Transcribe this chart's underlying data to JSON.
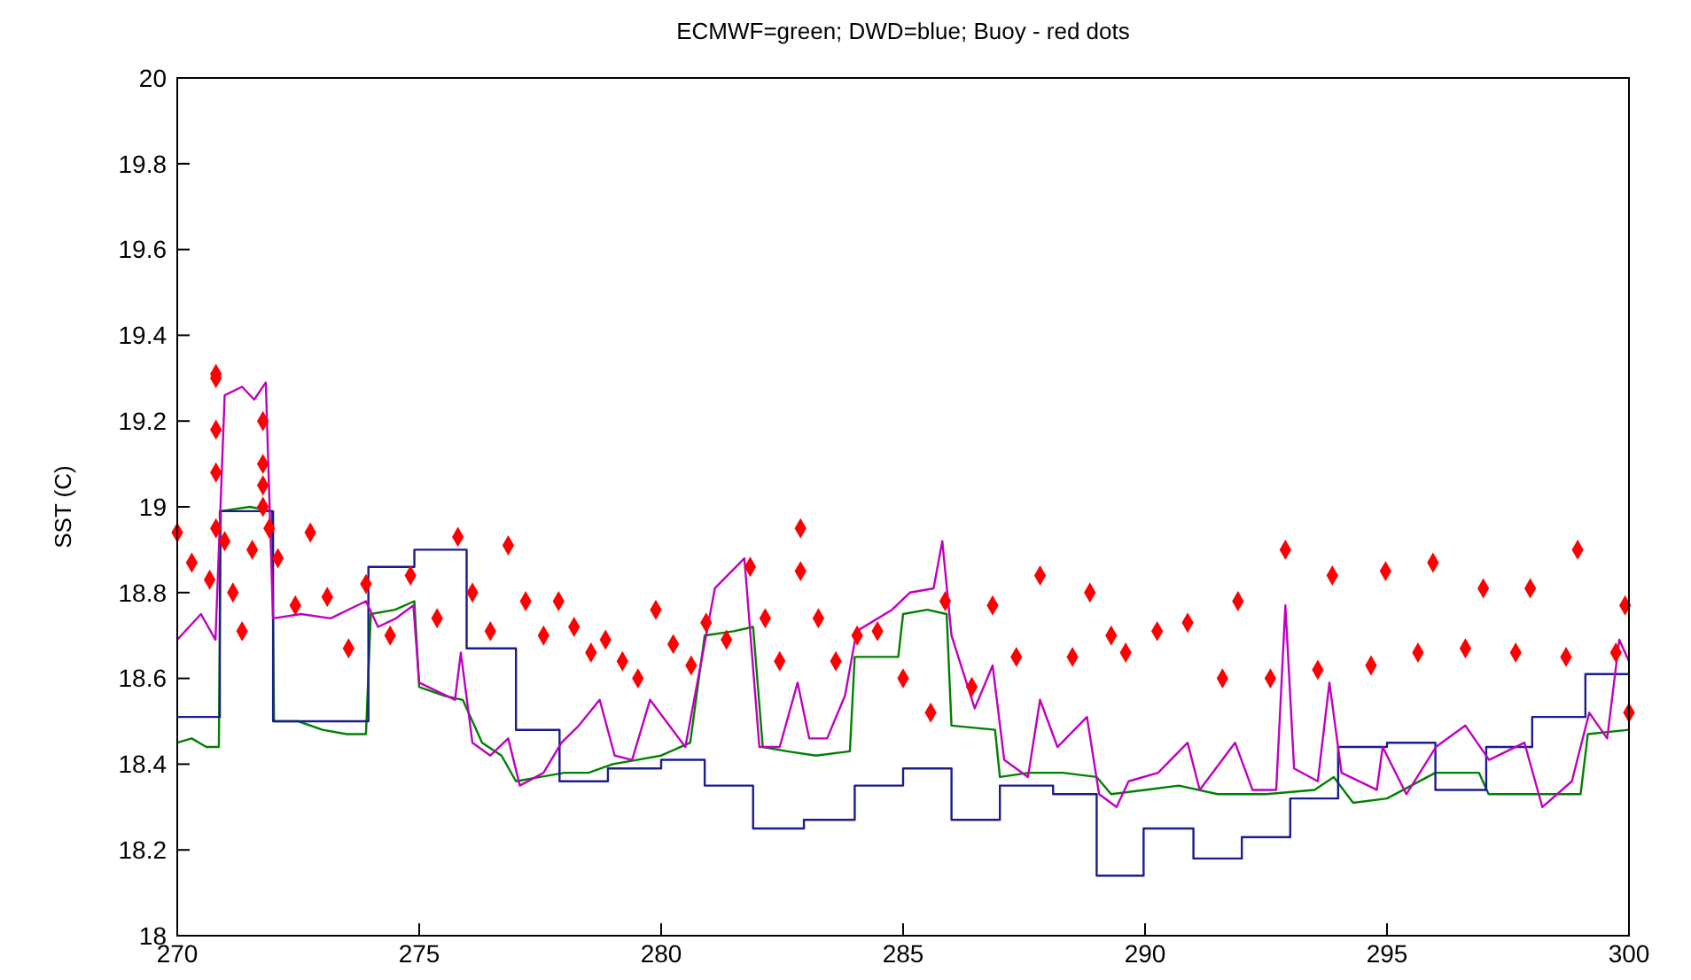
{
  "chart_data": {
    "type": "line",
    "title": "ECMWF=green; DWD=blue; Buoy - red dots",
    "ylabel": "SST (C)",
    "xlim": [
      270,
      300
    ],
    "xticks": [
      270,
      275,
      280,
      285,
      290,
      295,
      300
    ],
    "ylim": [
      18,
      20
    ],
    "yticks": [
      18,
      18.2,
      18.4,
      18.6,
      18.8,
      19,
      19.2,
      19.4,
      19.6,
      19.8,
      20
    ],
    "grid": false,
    "series": [
      {
        "color": "#008000",
        "x": [
          270,
          270.3,
          270.6,
          270.86,
          270.9,
          271.5,
          271.96,
          272,
          272.5,
          273,
          273.5,
          273.9,
          274,
          274.5,
          274.9,
          275,
          275.5,
          275.9,
          276.3,
          276.7,
          277,
          277.5,
          278,
          278.5,
          279,
          279.5,
          280,
          280.6,
          280.9,
          281.5,
          281.9,
          282.1,
          282.6,
          283.2,
          283.9,
          284,
          284.9,
          285,
          285.5,
          285.9,
          286,
          286.9,
          287,
          287.6,
          288.3,
          289,
          289.3,
          290,
          290.7,
          291.5,
          292.5,
          293.5,
          293.9,
          294.3,
          295,
          296,
          296.9,
          297.1,
          298,
          299,
          299.15,
          300
        ],
        "values": [
          18.45,
          18.46,
          18.44,
          18.44,
          18.99,
          19,
          18.99,
          18.5,
          18.5,
          18.48,
          18.47,
          18.47,
          18.75,
          18.76,
          18.78,
          18.58,
          18.56,
          18.55,
          18.45,
          18.42,
          18.36,
          18.37,
          18.38,
          18.38,
          18.4,
          18.41,
          18.42,
          18.45,
          18.7,
          18.71,
          18.72,
          18.44,
          18.43,
          18.42,
          18.43,
          18.65,
          18.65,
          18.75,
          18.76,
          18.75,
          18.49,
          18.48,
          18.37,
          18.38,
          18.38,
          18.37,
          18.33,
          18.34,
          18.35,
          18.33,
          18.33,
          18.34,
          18.37,
          18.31,
          18.32,
          18.38,
          18.38,
          18.33,
          18.33,
          18.33,
          18.47,
          18.48
        ]
      },
      {
        "type": "step",
        "color": "#1c1c8c",
        "x": [
          270,
          270.88,
          271.98,
          273.95,
          274.9,
          275.98,
          277,
          277.9,
          278.9,
          280,
          280.9,
          281.9,
          282.95,
          284,
          285,
          286,
          287,
          288.1,
          289,
          289.97,
          291,
          292,
          293,
          293.99,
          295,
          296,
          297.05,
          298,
          299.1,
          300
        ],
        "values": [
          18.51,
          18.99,
          18.5,
          18.86,
          18.9,
          18.67,
          18.48,
          18.36,
          18.39,
          18.41,
          18.35,
          18.25,
          18.27,
          18.35,
          18.39,
          18.27,
          18.35,
          18.33,
          18.14,
          18.25,
          18.18,
          18.23,
          18.32,
          18.44,
          18.45,
          18.34,
          18.44,
          18.51,
          18.61,
          18.61
        ]
      },
      {
        "color": "#c000c0",
        "x": [
          270,
          270.49,
          270.79,
          270.98,
          271.34,
          271.59,
          271.83,
          271.98,
          272.56,
          273.17,
          273.9,
          274.15,
          274.52,
          274.88,
          275,
          275.37,
          275.74,
          275.86,
          276.1,
          276.47,
          276.84,
          277.08,
          277.57,
          277.94,
          278.3,
          278.73,
          279.04,
          279.4,
          279.77,
          280.5,
          281.11,
          281.72,
          282.03,
          282.45,
          282.82,
          283.06,
          283.43,
          283.8,
          284.04,
          284.77,
          285.14,
          285.63,
          285.81,
          286,
          286.48,
          286.85,
          287.09,
          287.58,
          287.83,
          288.19,
          288.8,
          289.05,
          289.41,
          289.66,
          290.27,
          290.88,
          291.13,
          291.86,
          292.22,
          292.71,
          292.9,
          293.08,
          293.57,
          293.81,
          294.06,
          294.79,
          294.91,
          295.4,
          296.01,
          296.62,
          297.11,
          297.84,
          298.21,
          298.82,
          299.18,
          299.55,
          299.8,
          300
        ],
        "values": [
          18.69,
          18.75,
          18.69,
          19.26,
          19.28,
          19.25,
          19.29,
          18.74,
          18.75,
          18.74,
          18.78,
          18.72,
          18.74,
          18.77,
          18.59,
          18.57,
          18.55,
          18.66,
          18.45,
          18.42,
          18.46,
          18.35,
          18.38,
          18.45,
          18.49,
          18.55,
          18.42,
          18.41,
          18.55,
          18.44,
          18.81,
          18.88,
          18.44,
          18.44,
          18.59,
          18.46,
          18.46,
          18.56,
          18.71,
          18.76,
          18.8,
          18.81,
          18.92,
          18.7,
          18.53,
          18.63,
          18.41,
          18.37,
          18.55,
          18.44,
          18.51,
          18.33,
          18.3,
          18.36,
          18.38,
          18.45,
          18.34,
          18.45,
          18.34,
          18.34,
          18.77,
          18.39,
          18.36,
          18.59,
          18.38,
          18.34,
          18.44,
          18.33,
          18.44,
          18.49,
          18.41,
          18.45,
          18.3,
          18.36,
          18.52,
          18.46,
          18.69,
          18.64
        ]
      },
      {
        "type": "scatter",
        "color": "#ff0000",
        "marker": "diamond",
        "x": [
          270,
          270.3,
          270.67,
          270.8,
          270.8,
          270.8,
          270.8,
          270.8,
          270.98,
          271.15,
          271.34,
          271.55,
          271.77,
          271.77,
          271.77,
          271.77,
          271.9,
          272.08,
          272.44,
          272.75,
          273.1,
          273.54,
          273.9,
          274.4,
          274.82,
          275.37,
          275.8,
          276.1,
          276.47,
          276.84,
          277.2,
          277.57,
          277.88,
          278.2,
          278.55,
          278.85,
          279.2,
          279.52,
          279.89,
          280.25,
          280.62,
          280.93,
          281.35,
          281.84,
          282.15,
          282.45,
          282.88,
          282.88,
          283.25,
          283.61,
          284.05,
          284.47,
          285,
          285.57,
          285.87,
          286.42,
          286.85,
          287.34,
          287.83,
          288.5,
          288.86,
          289.3,
          289.6,
          290.25,
          290.88,
          291.6,
          291.92,
          292.59,
          292.9,
          293.57,
          293.87,
          294.67,
          294.97,
          295.64,
          295.95,
          296.62,
          296.99,
          297.66,
          297.96,
          298.7,
          298.94,
          299.73,
          299.92,
          300
        ],
        "values": [
          18.94,
          18.87,
          18.83,
          18.95,
          19.08,
          19.18,
          19.31,
          19.3,
          18.92,
          18.8,
          18.71,
          18.9,
          19.2,
          19.1,
          19.05,
          19.0,
          18.95,
          18.88,
          18.77,
          18.94,
          18.79,
          18.67,
          18.82,
          18.7,
          18.84,
          18.74,
          18.93,
          18.8,
          18.71,
          18.91,
          18.78,
          18.7,
          18.78,
          18.72,
          18.66,
          18.69,
          18.64,
          18.6,
          18.76,
          18.68,
          18.63,
          18.73,
          18.69,
          18.86,
          18.74,
          18.64,
          18.95,
          18.85,
          18.74,
          18.64,
          18.7,
          18.71,
          18.6,
          18.52,
          18.78,
          18.58,
          18.77,
          18.65,
          18.84,
          18.65,
          18.8,
          18.7,
          18.66,
          18.71,
          18.73,
          18.6,
          18.78,
          18.6,
          18.9,
          18.62,
          18.84,
          18.63,
          18.85,
          18.66,
          18.87,
          18.67,
          18.81,
          18.66,
          18.81,
          18.65,
          18.9,
          18.66,
          18.77,
          18.52
        ]
      }
    ]
  }
}
